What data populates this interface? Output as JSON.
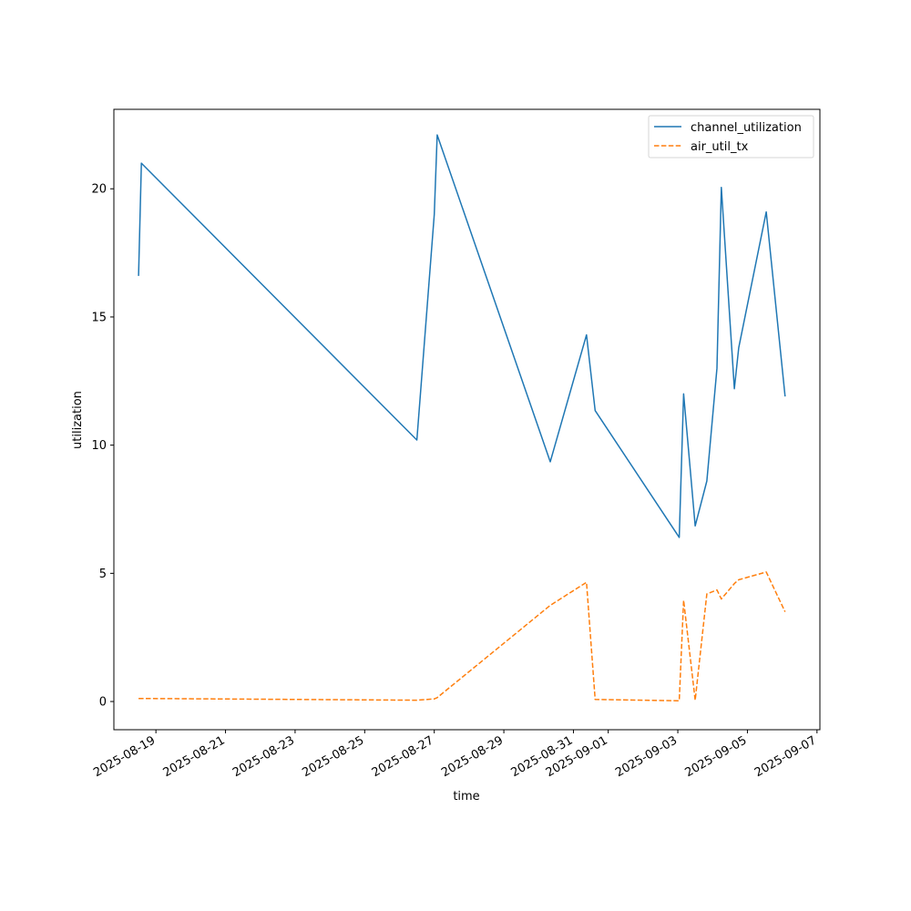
{
  "chart_data": {
    "type": "line",
    "xlabel": "time",
    "ylabel": "utilization",
    "x_tick_labels": [
      "2025-08-19",
      "2025-08-21",
      "2025-08-23",
      "2025-08-25",
      "2025-08-27",
      "2025-08-29",
      "2025-08-31",
      "2025-09-01",
      "2025-09-03",
      "2025-09-05",
      "2025-09-07"
    ],
    "y_ticks": [
      0,
      5,
      10,
      15,
      20
    ],
    "xlim": [
      "2025-08-17T19:00",
      "2025-09-07T02:00"
    ],
    "ylim": [
      -1.1,
      23.1
    ],
    "legend_position": "top-right",
    "series": [
      {
        "name": "channel_utilization",
        "color": "#1f77b4",
        "dash": "solid",
        "points": [
          {
            "x": "2025-08-18T12:00",
            "y": 16.6
          },
          {
            "x": "2025-08-18T14:00",
            "y": 21.0
          },
          {
            "x": "2025-08-26T12:00",
            "y": 10.2
          },
          {
            "x": "2025-08-27T00:00",
            "y": 19.0
          },
          {
            "x": "2025-08-27T02:00",
            "y": 22.1
          },
          {
            "x": "2025-08-30T08:00",
            "y": 9.35
          },
          {
            "x": "2025-08-31T09:00",
            "y": 14.3
          },
          {
            "x": "2025-08-31T15:00",
            "y": 11.35
          },
          {
            "x": "2025-09-03T01:00",
            "y": 6.4
          },
          {
            "x": "2025-09-03T04:00",
            "y": 12.0
          },
          {
            "x": "2025-09-03T12:00",
            "y": 6.85
          },
          {
            "x": "2025-09-03T20:00",
            "y": 8.6
          },
          {
            "x": "2025-09-04T03:00",
            "y": 13.0
          },
          {
            "x": "2025-09-04T06:00",
            "y": 20.05
          },
          {
            "x": "2025-09-04T15:00",
            "y": 12.2
          },
          {
            "x": "2025-09-04T18:00",
            "y": 13.8
          },
          {
            "x": "2025-09-05T13:00",
            "y": 19.1
          },
          {
            "x": "2025-09-06T02:00",
            "y": 11.9
          }
        ]
      },
      {
        "name": "air_util_tx",
        "color": "#ff7f0e",
        "dash": "dashed",
        "points": [
          {
            "x": "2025-08-18T12:00",
            "y": 0.12
          },
          {
            "x": "2025-08-18T14:00",
            "y": 0.12
          },
          {
            "x": "2025-08-26T12:00",
            "y": 0.05
          },
          {
            "x": "2025-08-27T00:00",
            "y": 0.1
          },
          {
            "x": "2025-08-27T02:00",
            "y": 0.15
          },
          {
            "x": "2025-08-30T08:00",
            "y": 3.75
          },
          {
            "x": "2025-08-31T09:00",
            "y": 4.65
          },
          {
            "x": "2025-08-31T15:00",
            "y": 0.08
          },
          {
            "x": "2025-09-03T01:00",
            "y": 0.03
          },
          {
            "x": "2025-09-03T04:00",
            "y": 3.95
          },
          {
            "x": "2025-09-03T12:00",
            "y": 0.05
          },
          {
            "x": "2025-09-03T20:00",
            "y": 4.2
          },
          {
            "x": "2025-09-04T03:00",
            "y": 4.35
          },
          {
            "x": "2025-09-04T06:00",
            "y": 4.0
          },
          {
            "x": "2025-09-04T15:00",
            "y": 4.6
          },
          {
            "x": "2025-09-04T18:00",
            "y": 4.75
          },
          {
            "x": "2025-09-05T13:00",
            "y": 5.05
          },
          {
            "x": "2025-09-06T02:00",
            "y": 3.5
          }
        ]
      }
    ]
  }
}
